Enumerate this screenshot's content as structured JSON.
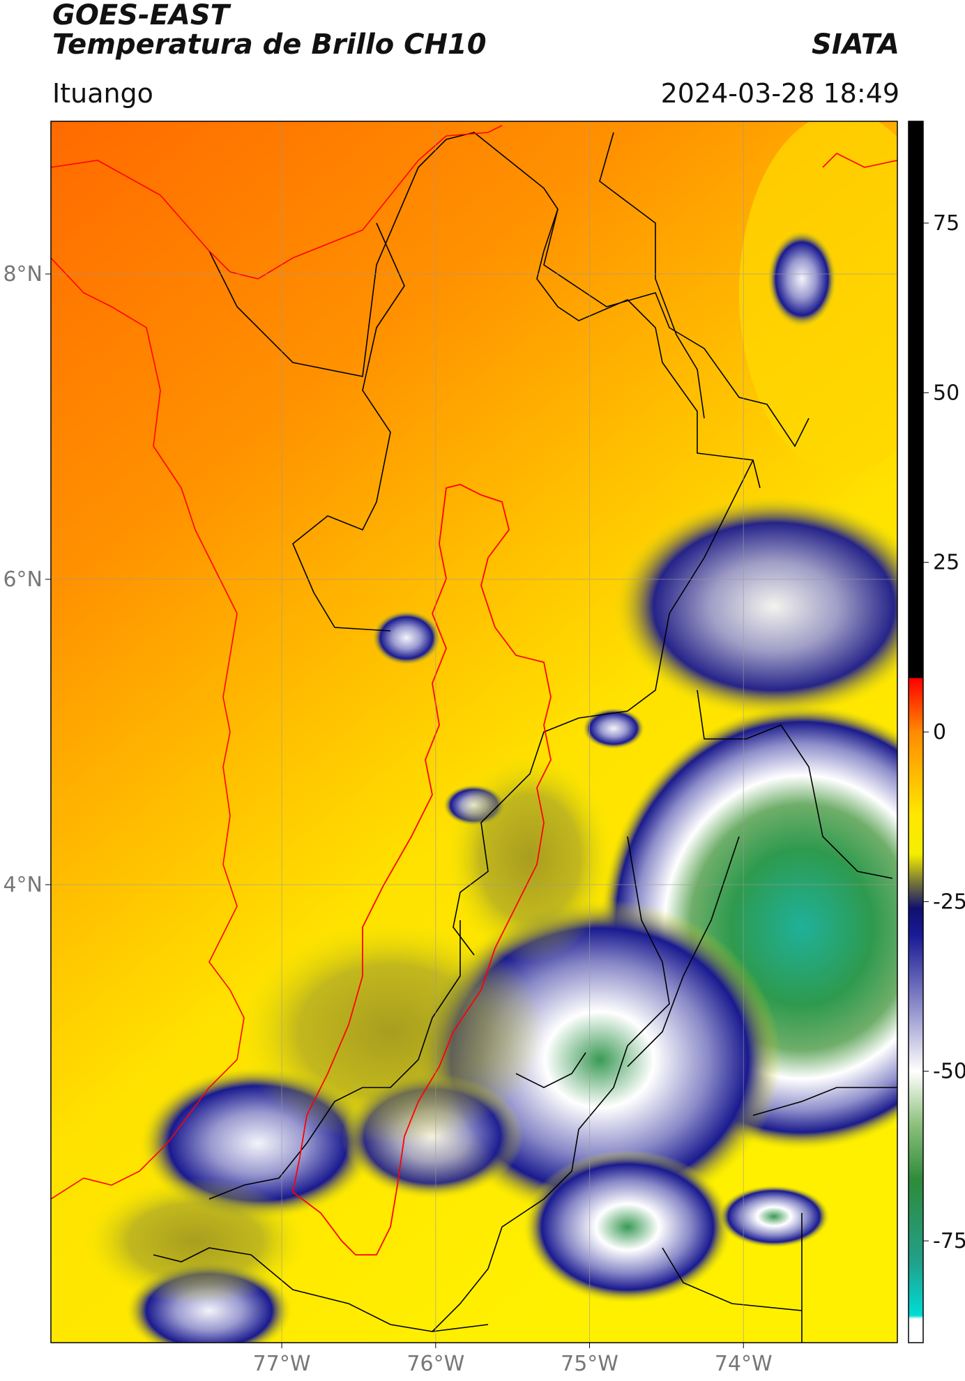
{
  "header": {
    "satellite": "GOES-EAST",
    "product": "Temperatura de Brillo CH10",
    "brand": "SIATA",
    "region": "Ituango",
    "timestamp": "2024-03-28 18:49"
  },
  "map": {
    "lon_range": [
      -78.5,
      -73.0
    ],
    "lat_range": [
      1.0,
      9.0
    ],
    "x_ticks": [
      {
        "lon": -77,
        "label": "77°W"
      },
      {
        "lon": -76,
        "label": "76°W"
      },
      {
        "lon": -75,
        "label": "75°W"
      },
      {
        "lon": -74,
        "label": "74°W"
      }
    ],
    "y_ticks": [
      {
        "lat": 8,
        "label": "8°N"
      },
      {
        "lat": 6,
        "label": "6°N"
      },
      {
        "lat": 4,
        "label": "4°N"
      }
    ],
    "grid": true
  },
  "colorbar": {
    "range": [
      -90,
      90
    ],
    "unit_note": "",
    "ticks": [
      {
        "value": 75,
        "label": "75"
      },
      {
        "value": 50,
        "label": "50"
      },
      {
        "value": 25,
        "label": "25"
      },
      {
        "value": 0,
        "label": "0"
      },
      {
        "value": -25,
        "label": "-25"
      },
      {
        "value": -50,
        "label": "-50"
      },
      {
        "value": -75,
        "label": "-75"
      }
    ],
    "stops": [
      {
        "value": 90,
        "color": "#000000"
      },
      {
        "value": 8,
        "color": "#000000"
      },
      {
        "value": 7.9,
        "color": "#ff0000"
      },
      {
        "value": 0,
        "color": "#ff8a00"
      },
      {
        "value": -12,
        "color": "#ffe600"
      },
      {
        "value": -18,
        "color": "#f5ee00"
      },
      {
        "value": -22,
        "color": "#7a7a36"
      },
      {
        "value": -26,
        "color": "#101070"
      },
      {
        "value": -30,
        "color": "#1a1a96"
      },
      {
        "value": -40,
        "color": "#8888c8"
      },
      {
        "value": -50,
        "color": "#ffffff"
      },
      {
        "value": -58,
        "color": "#8bbf7a"
      },
      {
        "value": -66,
        "color": "#2e8b3a"
      },
      {
        "value": -78,
        "color": "#22a08a"
      },
      {
        "value": -86,
        "color": "#00dcd6"
      },
      {
        "value": -86.5,
        "color": "#ffffff"
      },
      {
        "value": -90,
        "color": "#ffffff"
      }
    ]
  },
  "colors": {
    "border_lines": "#000000",
    "basin_outline": "#ff0000",
    "grid": "#9a9a9a"
  }
}
